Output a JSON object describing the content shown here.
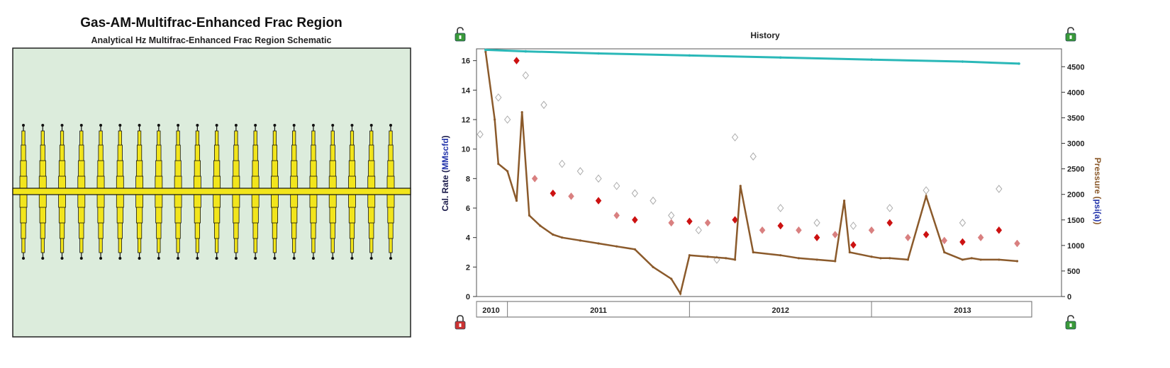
{
  "schematic": {
    "title": "Gas-AM-Multifrac-Enhanced Frac Region",
    "subtitle": "Analytical Hz Multifrac-Enhanced Frac Region Schematic",
    "fracture_count": 20,
    "colors": {
      "background": "#dcecdc",
      "fracture": "#f2e51c",
      "outline": "#111111"
    }
  },
  "history": {
    "title": "History",
    "left_axis_label": {
      "prefix": "Cal. Rate (",
      "unit": "MMscfd",
      "suffix": ")"
    },
    "right_axis_label": {
      "prefix": "Pressure (",
      "unit": "psi(a)",
      "suffix": ")"
    },
    "colors": {
      "pressure": "#2ab8b8",
      "flowing_pressure": "#8b5a2b",
      "gas_rate": "#cc1111",
      "gas_rate_light": "#d98080",
      "data_hollow": "#aaaaaa",
      "left_label": "#1a1a4a",
      "left_unit": "#2233aa",
      "right_label": "#8b5a2b",
      "right_unit": "#2233aa",
      "lock_green": "#3a9a3a",
      "lock_red": "#cc3333"
    }
  },
  "chart_data": {
    "type": "scatter",
    "title": "History",
    "ylabel": "Cal. Rate (MMscfd)",
    "y2label": "Pressure (psi(a))",
    "xlim": [
      2010.33,
      2013.38
    ],
    "ylim": [
      0,
      16.8
    ],
    "y2lim": [
      0,
      4850
    ],
    "x_ticks": [
      "2010",
      "2011",
      "2012",
      "2013"
    ],
    "y_ticks": [
      0,
      2,
      4,
      6,
      8,
      10,
      12,
      14,
      16
    ],
    "y2_ticks": [
      0,
      500,
      1000,
      1500,
      2000,
      2500,
      3000,
      3500,
      4000,
      4500
    ],
    "grid": false,
    "legend": "none",
    "series": [
      {
        "axis": "right",
        "x": [
          2010.38,
          2010.6,
          2011.0,
          2011.5,
          2012.0,
          2012.5,
          2013.0,
          2013.31
        ],
        "y": [
          4830,
          4800,
          4760,
          4720,
          4680,
          4640,
          4600,
          4560
        ]
      },
      {
        "axis": "left",
        "x": [
          2010.38,
          2010.43,
          2010.45,
          2010.5,
          2010.55,
          2010.58,
          2010.62,
          2010.68,
          2010.75,
          2010.8,
          2010.9,
          2011.0,
          2011.1,
          2011.2,
          2011.3,
          2011.4,
          2011.45,
          2011.5,
          2011.6,
          2011.7,
          2011.75,
          2011.78,
          2011.85,
          2012.0,
          2012.1,
          2012.2,
          2012.3,
          2012.35,
          2012.38,
          2012.5,
          2012.55,
          2012.6,
          2012.7,
          2012.8,
          2012.9,
          2013.0,
          2013.05,
          2013.1,
          2013.2,
          2013.3
        ],
        "y": [
          16.6,
          12.0,
          9.0,
          8.5,
          6.5,
          12.5,
          5.5,
          4.8,
          4.2,
          4.0,
          3.8,
          3.6,
          3.4,
          3.2,
          2.0,
          1.2,
          0.2,
          2.8,
          2.7,
          2.6,
          2.5,
          7.5,
          3.0,
          2.8,
          2.6,
          2.5,
          2.4,
          6.5,
          3.0,
          2.7,
          2.6,
          2.6,
          2.5,
          6.8,
          3.0,
          2.5,
          2.6,
          2.5,
          2.5,
          2.4
        ]
      },
      {
        "axis": "left",
        "x": [
          2010.55,
          2010.65,
          2010.75,
          2010.85,
          2011.0,
          2011.1,
          2011.2,
          2011.4,
          2011.5,
          2011.6,
          2011.75,
          2011.9,
          2012.0,
          2012.1,
          2012.2,
          2012.3,
          2012.4,
          2012.5,
          2012.6,
          2012.7,
          2012.8,
          2012.9,
          2013.0,
          2013.1,
          2013.2,
          2013.3
        ],
        "y": [
          16.0,
          8.0,
          7.0,
          6.8,
          6.5,
          5.5,
          5.2,
          5.0,
          5.1,
          5.0,
          5.2,
          4.5,
          4.8,
          4.5,
          4.0,
          4.2,
          3.5,
          4.5,
          5.0,
          4.0,
          4.2,
          3.8,
          3.7,
          4.0,
          4.5,
          3.6
        ]
      },
      {
        "axis": "left",
        "x": [
          2010.35,
          2010.45,
          2010.5,
          2010.6,
          2010.7,
          2010.8,
          2010.9,
          2011.0,
          2011.1,
          2011.2,
          2011.3,
          2011.4,
          2011.55,
          2011.65,
          2011.75,
          2011.85,
          2012.0,
          2012.2,
          2012.4,
          2012.6,
          2012.8,
          2013.0,
          2013.2
        ],
        "y": [
          11.0,
          13.5,
          12.0,
          15.0,
          13.0,
          9.0,
          8.5,
          8.0,
          7.5,
          7.0,
          6.5,
          5.5,
          4.5,
          2.5,
          10.8,
          9.5,
          6.0,
          5.0,
          4.8,
          6.0,
          7.2,
          5.0,
          7.3
        ]
      }
    ]
  }
}
